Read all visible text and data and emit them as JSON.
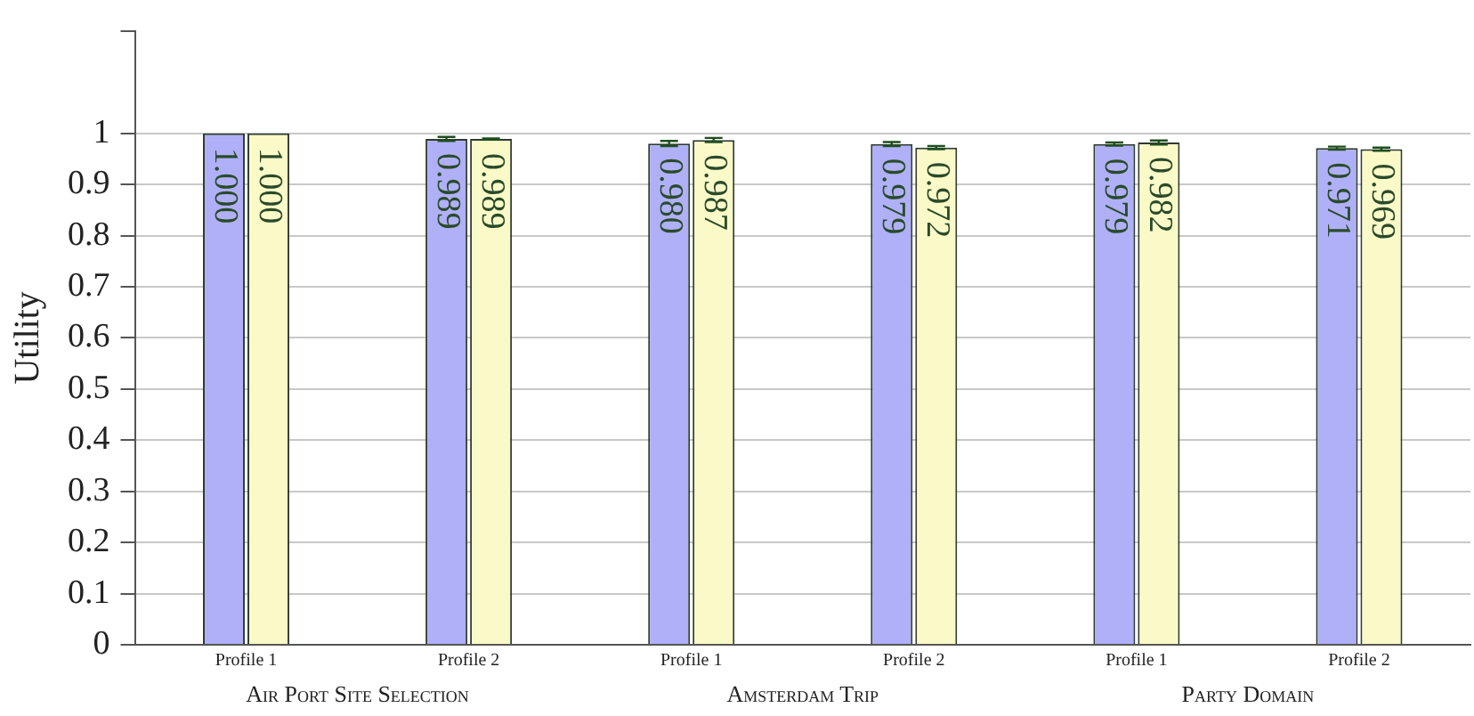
{
  "chart_data": {
    "type": "bar",
    "ylabel": "Utility",
    "categories": [
      "Profile 1",
      "Profile 2",
      "Profile 1",
      "Profile 2",
      "Profile 1",
      "Profile 2"
    ],
    "series": [
      {
        "color": "#b0b0f8",
        "values": [
          1.0,
          0.989,
          0.98,
          0.979,
          0.979,
          0.971
        ],
        "errors": [
          null,
          0.004,
          0.005,
          0.004,
          0.003,
          0.003
        ],
        "value_labels": [
          "1.000",
          "0.989",
          "0.980",
          "0.979",
          "0.979",
          "0.971"
        ]
      },
      {
        "color": "#fafac8",
        "values": [
          1.0,
          0.989,
          0.987,
          0.972,
          0.982,
          0.969
        ],
        "errors": [
          null,
          0.001,
          0.004,
          0.003,
          0.004,
          0.003
        ],
        "value_labels": [
          "1.000",
          "0.989",
          "0.987",
          "0.972",
          "0.982",
          "0.969"
        ]
      }
    ],
    "annotations": [
      "Air Port Site Selection",
      "Amsterdam Trip",
      "Party Domain"
    ],
    "ylim": [
      0,
      1.2
    ],
    "yticks": [
      0,
      0.1,
      0.2,
      0.3,
      0.4,
      0.5,
      0.6,
      0.7,
      0.8,
      0.9,
      1,
      {
        "value": 1.2,
        "label": null
      }
    ],
    "grid": "y",
    "legend": false
  }
}
